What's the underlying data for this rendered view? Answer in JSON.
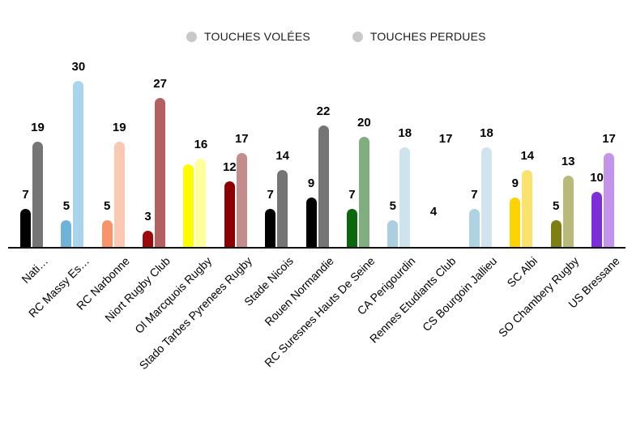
{
  "legend": {
    "items": [
      {
        "label": "TOUCHES VOLÉES",
        "marker_color": "#c8c8c8"
      },
      {
        "label": "TOUCHES PERDUES",
        "marker_color": "#c8c8c8"
      }
    ]
  },
  "chart_data": {
    "type": "bar",
    "title": "",
    "xlabel": "",
    "ylabel": "",
    "ylim": [
      0,
      30
    ],
    "grid": false,
    "legend_position": "top",
    "axis_line_color": "#111111",
    "value_label_color": "#000000",
    "categories": [
      "Nati…",
      "RC Massy Es…",
      "RC Narbonne",
      "Niort Rugby Club",
      "Ol Marcquois Rugby",
      "Stado Tarbes Pyrenees Rugby",
      "Stade Nicois",
      "Rouen Normandie",
      "RC Suresnes Hauts De Seine",
      "CA Perigourdin",
      "Rennes Etudiants Club",
      "CS Bourgoin Jallieu",
      "SC Albi",
      "SO Chambery Rugby",
      "US Bressane"
    ],
    "series": [
      {
        "name": "TOUCHES VOLÉES",
        "values": [
          7,
          5,
          5,
          3,
          15,
          12,
          7,
          9,
          7,
          5,
          4,
          7,
          9,
          5,
          10
        ],
        "labels": [
          "7",
          "5",
          "5",
          "3",
          null,
          "12",
          "7",
          "9",
          "7",
          "5",
          "4",
          "7",
          "9",
          "5",
          "10"
        ],
        "colors": [
          "#000000",
          "#6fb3d9",
          "#f9946a",
          "#9b0b0b",
          "#fdfd00",
          "#8b0000",
          "#000000",
          "#000000",
          "#0b670b",
          "#aacfe0",
          "#ffffff",
          "#b0d3e2",
          "#fdd302",
          "#7e7e12",
          "#7c2ed8"
        ]
      },
      {
        "name": "TOUCHES PERDUES",
        "values": [
          19,
          30,
          19,
          27,
          16,
          17,
          14,
          22,
          20,
          18,
          17,
          18,
          14,
          13,
          17
        ],
        "labels": [
          "19",
          "30",
          "19",
          "27",
          "16",
          "17",
          "14",
          "22",
          "20",
          "18",
          "17",
          "18",
          "14",
          "13",
          "17"
        ],
        "colors": [
          "#757575",
          "#a9d5ec",
          "#fbc9b3",
          "#b56060",
          "#ffff9e",
          "#c38d8d",
          "#757575",
          "#757575",
          "#7fae7f",
          "#cde3ee",
          "#ffffff",
          "#cfe4ef",
          "#f9e26d",
          "#b9b979",
          "#c494ea"
        ]
      }
    ]
  }
}
